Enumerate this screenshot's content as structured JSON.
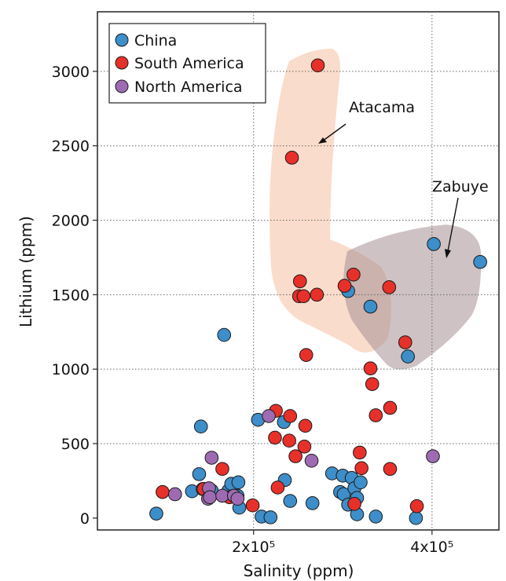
{
  "chart_data": {
    "type": "scatter",
    "title": "",
    "xlabel": "Salinity (ppm)",
    "ylabel": "Lithium (ppm)",
    "xlim": [
      25000,
      475000
    ],
    "ylim": [
      -80,
      3400
    ],
    "x_ticks": [
      200000,
      400000
    ],
    "x_tick_labels": [
      "2x10⁵",
      "4x10⁵"
    ],
    "y_ticks": [
      0,
      500,
      1000,
      1500,
      2000,
      2500,
      3000
    ],
    "y_tick_labels": [
      "0",
      "500",
      "1000",
      "1500",
      "2000",
      "2500",
      "3000"
    ],
    "grid": true,
    "legend_position": "top-left",
    "series": [
      {
        "name": "China",
        "color": "#3d8ec9",
        "points": [
          [
            91000,
            30
          ],
          [
            131000,
            180
          ],
          [
            139000,
            295
          ],
          [
            141000,
            615
          ],
          [
            143000,
            195
          ],
          [
            153000,
            185
          ],
          [
            167000,
            1230
          ],
          [
            172000,
            185
          ],
          [
            175000,
            230
          ],
          [
            182000,
            150
          ],
          [
            183000,
            240
          ],
          [
            184000,
            70
          ],
          [
            205000,
            660
          ],
          [
            209000,
            10
          ],
          [
            219000,
            5
          ],
          [
            234000,
            645
          ],
          [
            235000,
            255
          ],
          [
            241000,
            115
          ],
          [
            266000,
            100
          ],
          [
            288000,
            300
          ],
          [
            297000,
            175
          ],
          [
            300000,
            285
          ],
          [
            301000,
            160
          ],
          [
            306000,
            90
          ],
          [
            310000,
            270
          ],
          [
            313000,
            200
          ],
          [
            316000,
            135
          ],
          [
            316000,
            25
          ],
          [
            320000,
            240
          ],
          [
            306000,
            1525
          ],
          [
            331000,
            1420
          ],
          [
            337000,
            10
          ],
          [
            373000,
            1085
          ],
          [
            382000,
            0
          ],
          [
            402000,
            1840
          ],
          [
            454000,
            1720
          ]
        ]
      },
      {
        "name": "South America",
        "color": "#e8302a",
        "points": [
          [
            98000,
            175
          ],
          [
            144000,
            195
          ],
          [
            165000,
            330
          ],
          [
            173000,
            140
          ],
          [
            199000,
            85
          ],
          [
            225000,
            720
          ],
          [
            224000,
            540
          ],
          [
            227000,
            205
          ],
          [
            240000,
            520
          ],
          [
            241000,
            685
          ],
          [
            247000,
            415
          ],
          [
            257000,
            480
          ],
          [
            258000,
            620
          ],
          [
            252000,
            1590
          ],
          [
            251000,
            1490
          ],
          [
            256000,
            1490
          ],
          [
            271000,
            1500
          ],
          [
            259000,
            1095
          ],
          [
            243000,
            2420
          ],
          [
            272000,
            3040
          ],
          [
            302000,
            1560
          ],
          [
            312000,
            1635
          ],
          [
            313000,
            95
          ],
          [
            319000,
            440
          ],
          [
            321000,
            335
          ],
          [
            331000,
            1005
          ],
          [
            333000,
            900
          ],
          [
            337000,
            690
          ],
          [
            353000,
            740
          ],
          [
            352000,
            1550
          ],
          [
            353000,
            330
          ],
          [
            370000,
            1180
          ],
          [
            383000,
            80
          ]
        ]
      },
      {
        "name": "North America",
        "color": "#9e6bb3",
        "points": [
          [
            112000,
            160
          ],
          [
            150000,
            200
          ],
          [
            153000,
            405
          ],
          [
            149000,
            130
          ],
          [
            151000,
            140
          ],
          [
            165000,
            150
          ],
          [
            178000,
            150
          ],
          [
            182000,
            130
          ],
          [
            217000,
            685
          ],
          [
            265000,
            385
          ],
          [
            401000,
            415
          ]
        ]
      }
    ],
    "annotations": [
      {
        "text": "Atacama"
      },
      {
        "text": "Zabuye"
      }
    ]
  }
}
